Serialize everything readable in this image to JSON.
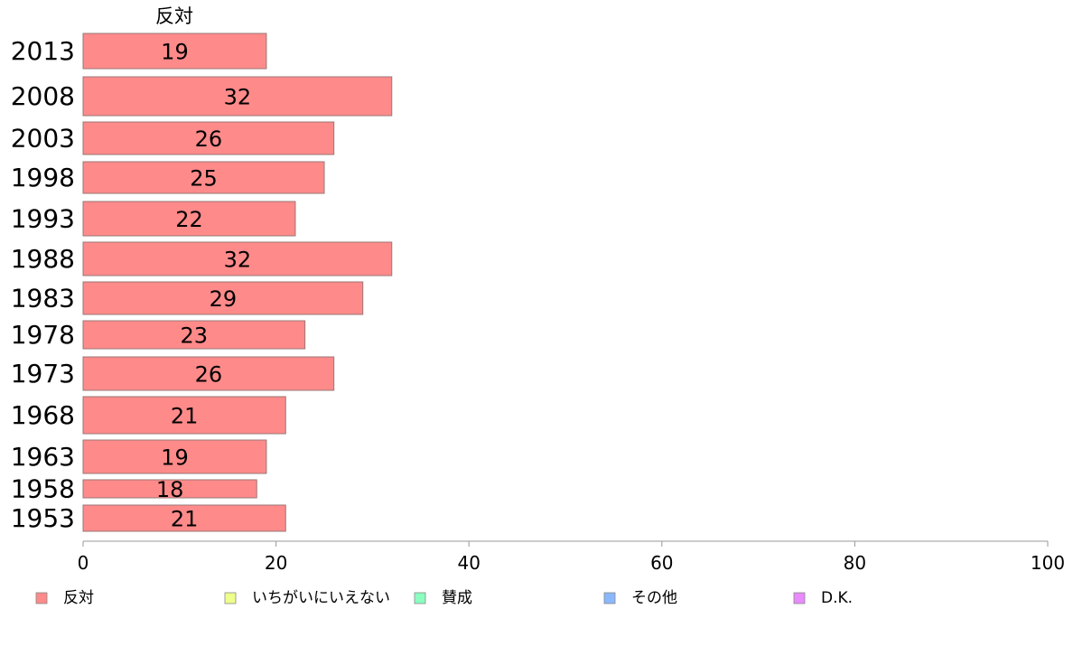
{
  "chart_data": {
    "type": "bar",
    "orientation": "horizontal",
    "series_title": "反対",
    "categories": [
      "2013",
      "2008",
      "2003",
      "1998",
      "1993",
      "1988",
      "1983",
      "1978",
      "1973",
      "1968",
      "1963",
      "1958",
      "1953"
    ],
    "series": [
      {
        "name": "反対",
        "values": [
          19,
          32,
          26,
          25,
          22,
          32,
          29,
          23,
          26,
          21,
          19,
          18,
          21
        ],
        "color": "#ff8a8a"
      }
    ],
    "xlim": [
      0,
      100
    ],
    "xticks": [
      0,
      20,
      40,
      60,
      80,
      100
    ],
    "grid": false,
    "legend_position": "bottom",
    "legend": [
      {
        "label": "反対",
        "color": "#ff8a8a"
      },
      {
        "label": "いちがいにいえない",
        "color": "#eeff8a"
      },
      {
        "label": "賛成",
        "color": "#8affc0"
      },
      {
        "label": "その他",
        "color": "#8ab8ff"
      },
      {
        "label": "D.K.",
        "color": "#e98aff"
      }
    ]
  }
}
